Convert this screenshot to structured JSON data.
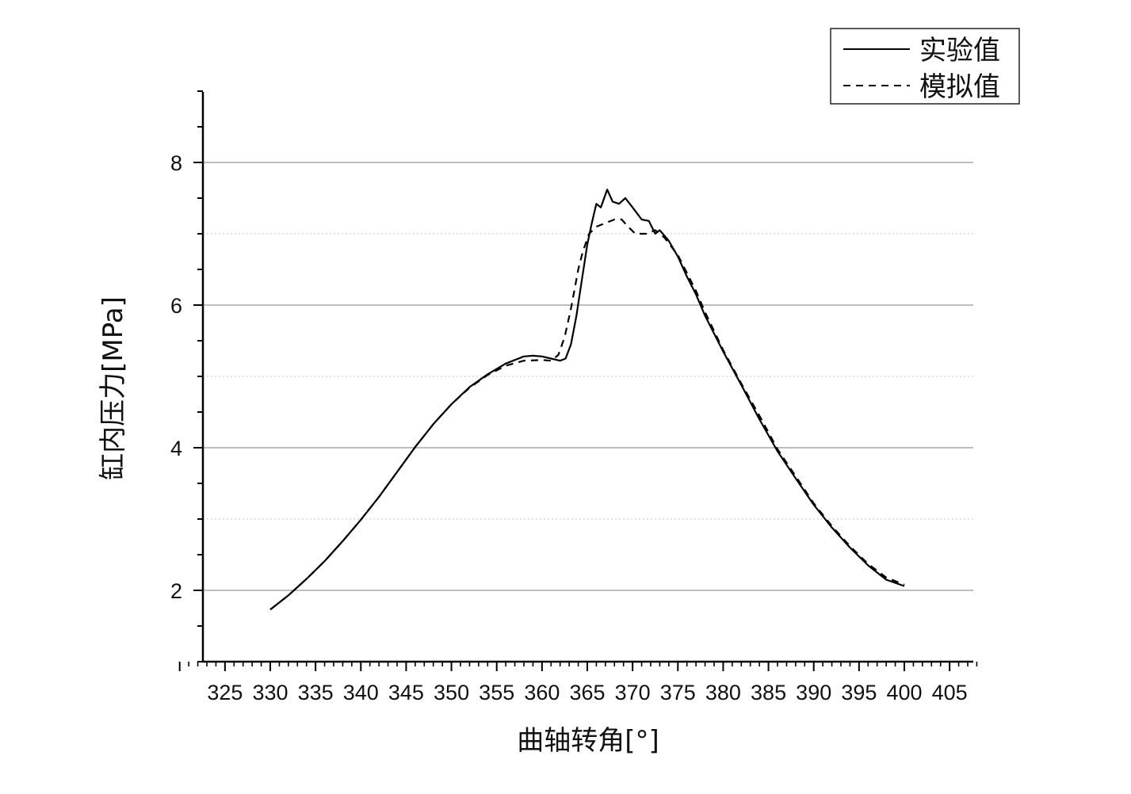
{
  "chart_data": {
    "type": "line",
    "title": "",
    "xlabel": "曲轴转角[°]",
    "ylabel": "缸内压力[MPa]",
    "xlim": [
      320,
      408
    ],
    "ylim": [
      1,
      9
    ],
    "x_ticks": [
      325,
      330,
      335,
      340,
      345,
      350,
      355,
      360,
      365,
      370,
      375,
      380,
      385,
      390,
      395,
      400,
      405
    ],
    "x_tick_labels": [
      "325",
      "330",
      "335",
      "340",
      "345",
      "350",
      "355",
      "360",
      "365",
      "370",
      "375",
      "380",
      "385",
      "390",
      "395",
      "400",
      "405"
    ],
    "y_ticks": [
      2,
      4,
      6,
      8
    ],
    "y_tick_labels": [
      "2",
      "4",
      "6",
      "8"
    ],
    "y_minor_grid": [
      3,
      5,
      7
    ],
    "grid": true,
    "legend_position": "top-right",
    "series": [
      {
        "name": "实验值",
        "style": "solid",
        "color": "#000000",
        "points": [
          [
            330,
            1.73
          ],
          [
            332,
            1.93
          ],
          [
            334,
            2.16
          ],
          [
            336,
            2.41
          ],
          [
            338,
            2.69
          ],
          [
            340,
            2.99
          ],
          [
            342,
            3.31
          ],
          [
            344,
            3.66
          ],
          [
            346,
            4.01
          ],
          [
            348,
            4.33
          ],
          [
            350,
            4.61
          ],
          [
            352,
            4.85
          ],
          [
            354,
            5.03
          ],
          [
            356,
            5.18
          ],
          [
            358,
            5.28
          ],
          [
            359,
            5.29
          ],
          [
            360,
            5.28
          ],
          [
            361,
            5.25
          ],
          [
            362,
            5.22
          ],
          [
            362.6,
            5.25
          ],
          [
            363.2,
            5.45
          ],
          [
            363.8,
            5.85
          ],
          [
            364.4,
            6.35
          ],
          [
            365,
            6.85
          ],
          [
            365.5,
            7.15
          ],
          [
            366,
            7.42
          ],
          [
            366.5,
            7.37
          ],
          [
            367.2,
            7.62
          ],
          [
            367.8,
            7.45
          ],
          [
            368.5,
            7.42
          ],
          [
            369.2,
            7.5
          ],
          [
            370,
            7.37
          ],
          [
            371,
            7.2
          ],
          [
            371.8,
            7.18
          ],
          [
            372.5,
            7.0
          ],
          [
            373,
            7.05
          ],
          [
            374,
            6.9
          ],
          [
            375,
            6.68
          ],
          [
            376,
            6.4
          ],
          [
            377,
            6.15
          ],
          [
            378,
            5.85
          ],
          [
            380,
            5.35
          ],
          [
            382,
            4.88
          ],
          [
            384,
            4.4
          ],
          [
            386,
            3.95
          ],
          [
            388,
            3.57
          ],
          [
            390,
            3.2
          ],
          [
            392,
            2.88
          ],
          [
            394,
            2.6
          ],
          [
            396,
            2.35
          ],
          [
            398,
            2.15
          ],
          [
            400,
            2.06
          ]
        ]
      },
      {
        "name": "模拟值",
        "style": "dashed",
        "color": "#000000",
        "points": [
          [
            330,
            1.73
          ],
          [
            332,
            1.93
          ],
          [
            334,
            2.16
          ],
          [
            336,
            2.41
          ],
          [
            338,
            2.69
          ],
          [
            340,
            2.99
          ],
          [
            342,
            3.31
          ],
          [
            344,
            3.66
          ],
          [
            346,
            4.01
          ],
          [
            348,
            4.33
          ],
          [
            350,
            4.61
          ],
          [
            352,
            4.84
          ],
          [
            354,
            5.02
          ],
          [
            356,
            5.15
          ],
          [
            358,
            5.22
          ],
          [
            360,
            5.23
          ],
          [
            361,
            5.22
          ],
          [
            361.8,
            5.3
          ],
          [
            362.5,
            5.55
          ],
          [
            363.2,
            5.95
          ],
          [
            364,
            6.5
          ],
          [
            364.5,
            6.75
          ],
          [
            365.2,
            7.0
          ],
          [
            366,
            7.1
          ],
          [
            367,
            7.15
          ],
          [
            368,
            7.2
          ],
          [
            368.8,
            7.2
          ],
          [
            369.5,
            7.1
          ],
          [
            370.3,
            7.0
          ],
          [
            371.5,
            7.0
          ],
          [
            372.5,
            7.05
          ],
          [
            373.5,
            6.95
          ],
          [
            375,
            6.7
          ],
          [
            376,
            6.45
          ],
          [
            377,
            6.2
          ],
          [
            378,
            5.9
          ],
          [
            380,
            5.37
          ],
          [
            382,
            4.9
          ],
          [
            384,
            4.45
          ],
          [
            386,
            3.98
          ],
          [
            388,
            3.6
          ],
          [
            390,
            3.22
          ],
          [
            392,
            2.9
          ],
          [
            394,
            2.62
          ],
          [
            396,
            2.37
          ],
          [
            398,
            2.18
          ],
          [
            400,
            2.08
          ]
        ]
      }
    ]
  }
}
